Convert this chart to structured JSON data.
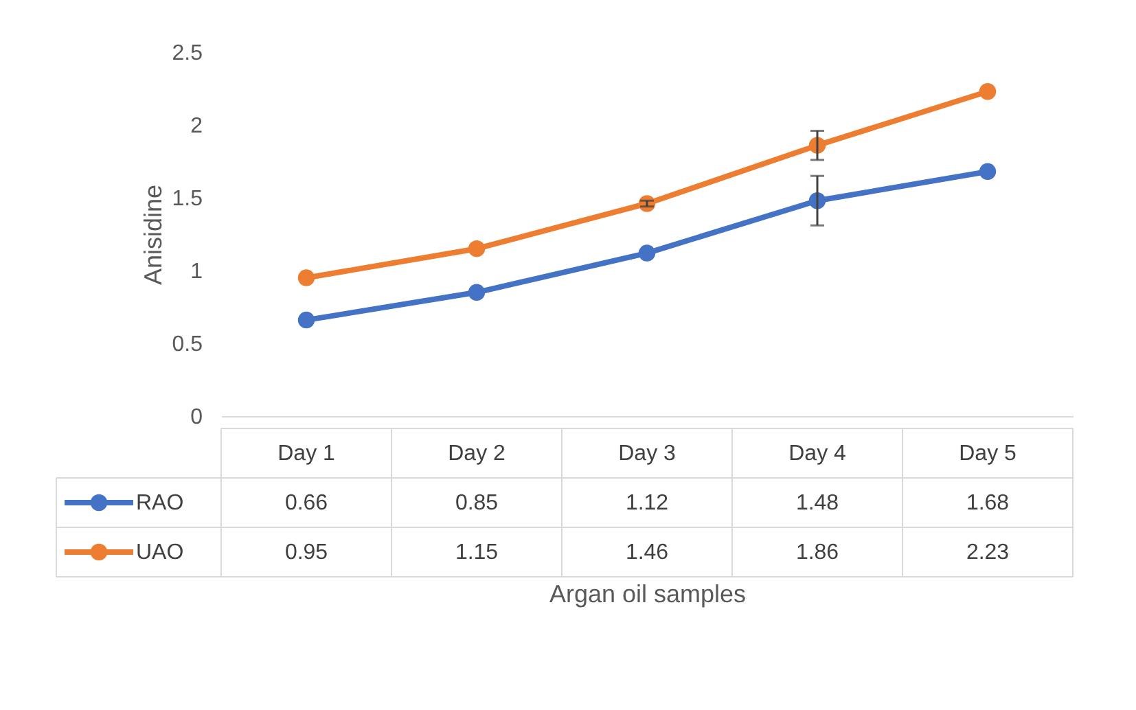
{
  "chart_data": {
    "type": "line",
    "xlabel": "Argan oil samples",
    "ylabel": "Anisidine",
    "categories": [
      "Day 1",
      "Day 2",
      "Day 3",
      "Day 4",
      "Day 5"
    ],
    "series": [
      {
        "name": "RAO",
        "color": "#4472c4",
        "values": [
          0.66,
          0.85,
          1.12,
          1.48,
          1.68
        ],
        "errors": [
          null,
          null,
          null,
          0.17,
          null
        ]
      },
      {
        "name": "UAO",
        "color": "#ed7d31",
        "values": [
          0.95,
          1.15,
          1.46,
          1.86,
          2.23
        ],
        "errors": [
          null,
          null,
          0.02,
          0.1,
          null
        ]
      }
    ],
    "ylim": [
      0,
      2.5
    ],
    "yticks": [
      0,
      0.5,
      1,
      1.5,
      2,
      2.5
    ],
    "grid": false,
    "legend": "bottom",
    "marker": "circle",
    "line_style": "solid",
    "data_labels": true
  }
}
